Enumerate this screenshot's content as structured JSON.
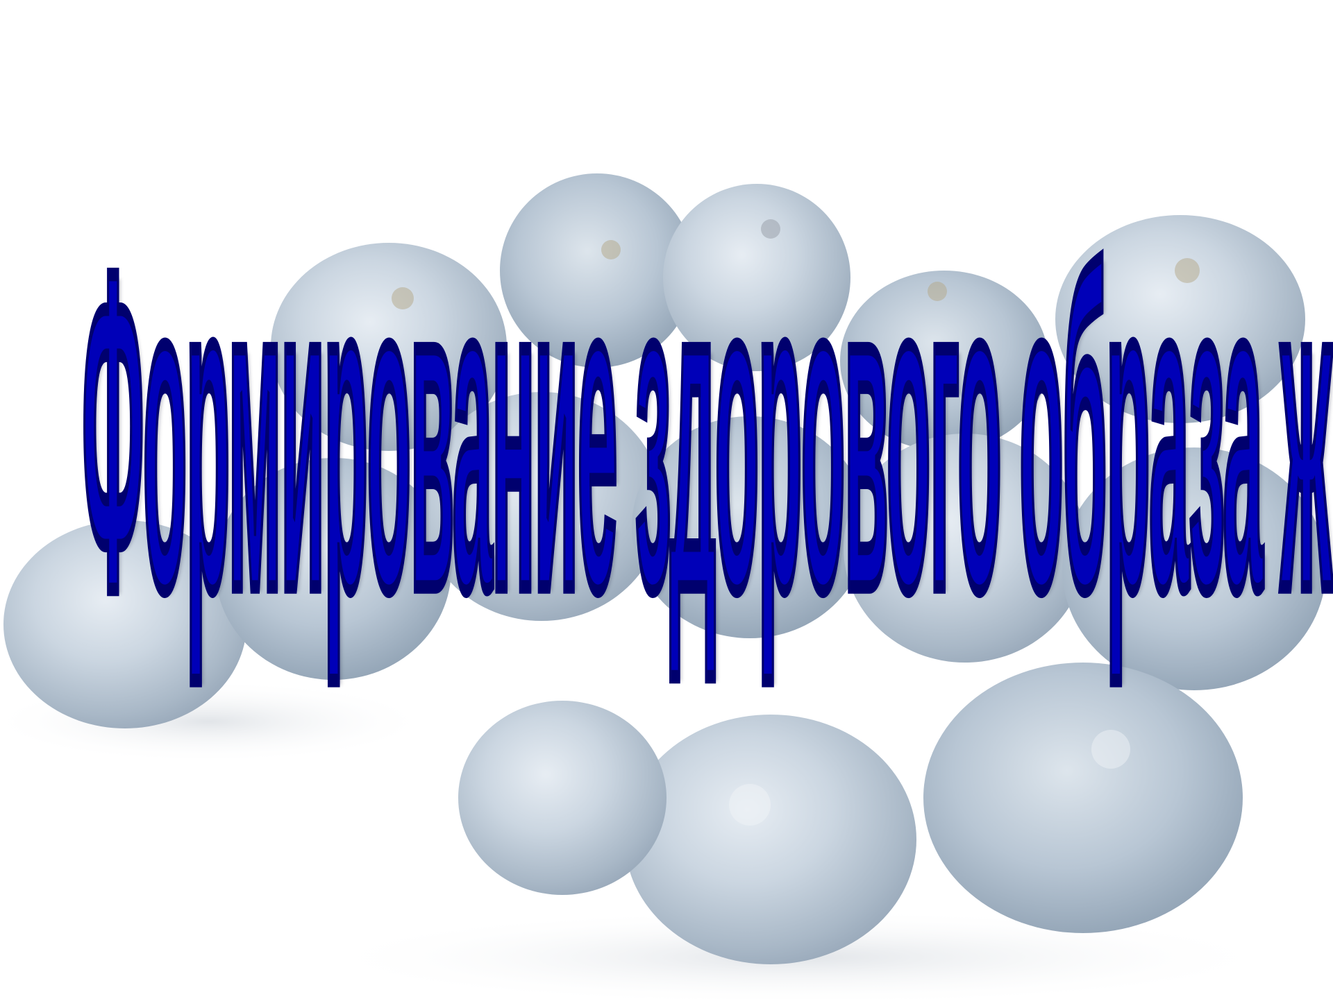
{
  "slide": {
    "title": "Формирование здорового образа жизни через привитие основ здоровья",
    "background_art": "blueberries-photo",
    "title_color": "#0000b8",
    "title_outline_color": "#00006e"
  }
}
